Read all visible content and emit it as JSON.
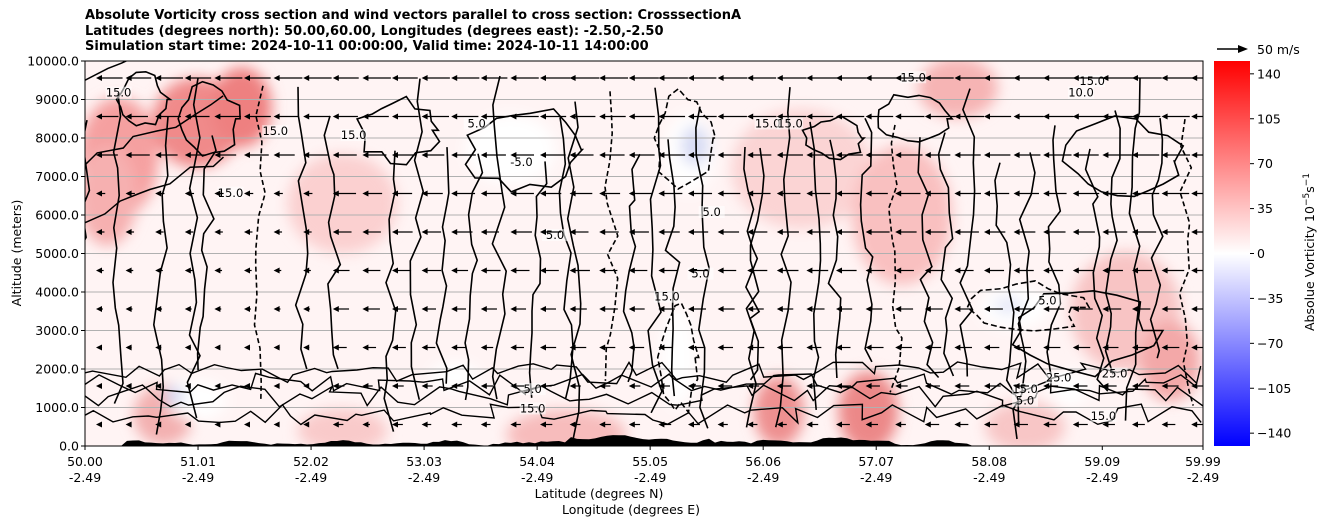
{
  "title_lines": [
    "Absolute Vorticity cross section and wind vectors parallel to cross section: CrosssectionA",
    "Latitudes (degrees north): 50.00,60.00, Longitudes (degrees east): -2.50,-2.50",
    "Simulation start time: 2024-10-11 00:00:00, Valid time: 2024-10-11 14:00:00"
  ],
  "chart_data": {
    "type": "heatmap",
    "title": "Absolute Vorticity cross section and wind vectors parallel to cross section: CrosssectionA",
    "ylabel": "Altitude (meters)",
    "xlabel_lines": [
      "Latitude (degrees N)",
      "Longitude (degrees E)"
    ],
    "ylim": [
      0,
      10000
    ],
    "y_ticks": [
      "0.0",
      "1000.0",
      "2000.0",
      "3000.0",
      "4000.0",
      "5000.0",
      "6000.0",
      "7000.0",
      "8000.0",
      "9000.0",
      "10000.0"
    ],
    "y_tick_values": [
      0,
      1000,
      2000,
      3000,
      4000,
      5000,
      6000,
      7000,
      8000,
      9000,
      10000
    ],
    "x_ticks": [
      {
        "lat": "50.00",
        "lon": "-2.49"
      },
      {
        "lat": "51.01",
        "lon": "-2.49"
      },
      {
        "lat": "52.02",
        "lon": "-2.49"
      },
      {
        "lat": "53.03",
        "lon": "-2.49"
      },
      {
        "lat": "54.04",
        "lon": "-2.49"
      },
      {
        "lat": "55.05",
        "lon": "-2.49"
      },
      {
        "lat": "56.06",
        "lon": "-2.49"
      },
      {
        "lat": "57.07",
        "lon": "-2.49"
      },
      {
        "lat": "58.08",
        "lon": "-2.49"
      },
      {
        "lat": "59.09",
        "lon": "-2.49"
      },
      {
        "lat": "59.99",
        "lon": "-2.49"
      }
    ],
    "grid": "horizontal",
    "colorbar": {
      "label": "Absolue Vorticity 10",
      "label_exp1": "−5",
      "label_s": "s",
      "label_exp2": "−1",
      "ticks": [
        "140",
        "105",
        "70",
        "35",
        "0",
        "−35",
        "−70",
        "−105",
        "−140"
      ],
      "tick_values": [
        140,
        105,
        70,
        35,
        0,
        -35,
        -70,
        -105,
        -140
      ],
      "range": [
        -150,
        150
      ],
      "colors": [
        "#0000ff",
        "#ffffff",
        "#ff0000"
      ]
    },
    "quiver_key": {
      "label": "50 m/s",
      "value": 50
    },
    "contour_labels": [
      {
        "text": "15.0",
        "lat": 50.3,
        "alt": 9100
      },
      {
        "text": "15.0",
        "lat": 51.7,
        "alt": 8100
      },
      {
        "text": "15.0",
        "lat": 51.3,
        "alt": 6500
      },
      {
        "text": "15.0",
        "lat": 52.4,
        "alt": 8000
      },
      {
        "text": "5.0",
        "lat": 53.5,
        "alt": 8300
      },
      {
        "text": "-5.0",
        "lat": 53.9,
        "alt": 7300
      },
      {
        "text": "5.0",
        "lat": 54.2,
        "alt": 5400
      },
      {
        "text": "5.0",
        "lat": 55.6,
        "alt": 6000
      },
      {
        "text": "5.0",
        "lat": 55.5,
        "alt": 4400
      },
      {
        "text": "15.0",
        "lat": 55.2,
        "alt": 3800
      },
      {
        "text": "15.0",
        "lat": 56.1,
        "alt": 8300
      },
      {
        "text": "15.0",
        "lat": 56.3,
        "alt": 8300
      },
      {
        "text": "15.0",
        "lat": 57.4,
        "alt": 9500
      },
      {
        "text": "15.0",
        "lat": 59.0,
        "alt": 9400
      },
      {
        "text": "10.0",
        "lat": 58.9,
        "alt": 9100
      },
      {
        "text": "5.0",
        "lat": 58.6,
        "alt": 3700
      },
      {
        "text": "25.0",
        "lat": 59.2,
        "alt": 1800
      },
      {
        "text": "5.0",
        "lat": 54.0,
        "alt": 1400
      },
      {
        "text": "15.0",
        "lat": 54.0,
        "alt": 900
      },
      {
        "text": "15.0",
        "lat": 59.1,
        "alt": 700
      },
      {
        "text": "15.0",
        "lat": 58.4,
        "alt": 1400
      },
      {
        "text": "25.0",
        "lat": 58.7,
        "alt": 1700
      },
      {
        "text": "5.0",
        "lat": 58.4,
        "alt": 1100
      }
    ]
  }
}
